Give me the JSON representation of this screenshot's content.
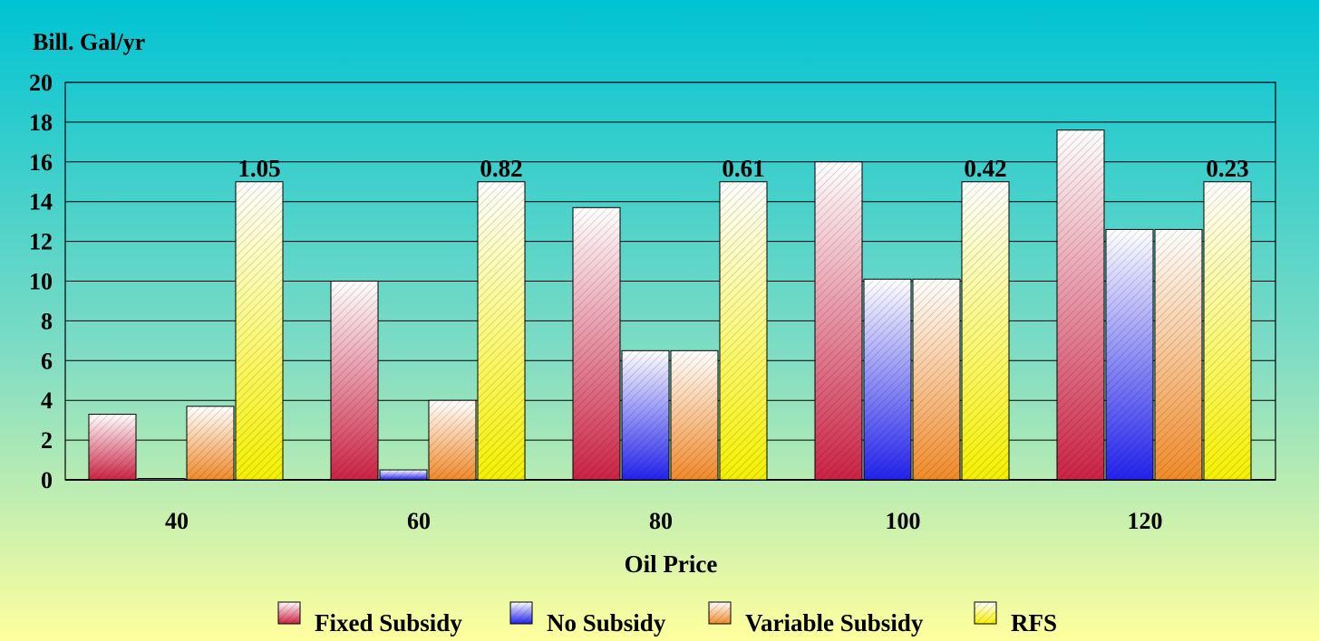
{
  "chart_data": {
    "type": "bar",
    "ylabel": "Bill. Gal/yr",
    "xlabel": "Oil Price",
    "ylim": [
      0,
      20
    ],
    "yticks": [
      0,
      2,
      4,
      6,
      8,
      10,
      12,
      14,
      16,
      18,
      20
    ],
    "grid": true,
    "legend_position": "bottom",
    "categories": [
      "40",
      "60",
      "80",
      "100",
      "120"
    ],
    "series": [
      {
        "name": "Fixed Subsidy",
        "color": "#cc2244",
        "values": [
          3.3,
          10.0,
          13.7,
          16.0,
          17.6
        ]
      },
      {
        "name": "No Subsidy",
        "color": "#2222ee",
        "values": [
          0.05,
          0.5,
          6.5,
          10.1,
          12.6
        ]
      },
      {
        "name": "Variable Subsidy",
        "color": "#f08a2a",
        "values": [
          3.7,
          4.0,
          6.5,
          10.1,
          12.6
        ]
      },
      {
        "name": "RFS",
        "color": "#f5f000",
        "values": [
          15.0,
          15.0,
          15.0,
          15.0,
          15.0
        ]
      }
    ],
    "annotations": [
      "1.05",
      "0.82",
      "0.61",
      "0.42",
      "0.23"
    ]
  },
  "background": {
    "top_color": "#00c3d3",
    "bottom_color": "#ffff9e"
  }
}
